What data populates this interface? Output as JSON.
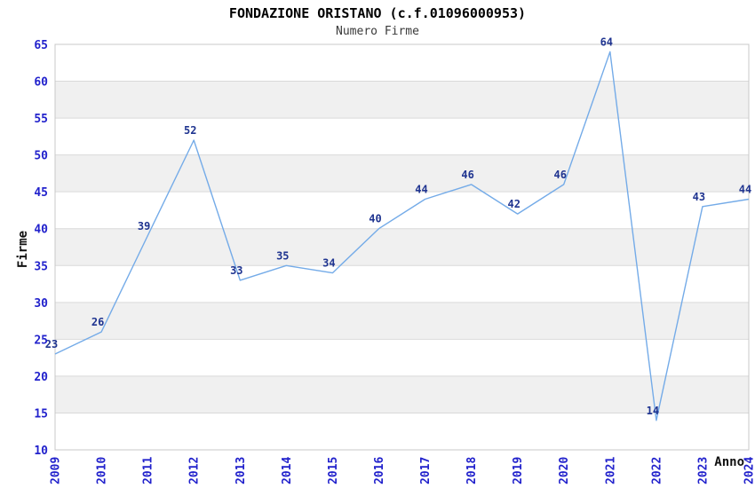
{
  "chart": {
    "title": "FONDAZIONE ORISTANO (c.f.01096000953)",
    "subtitle": "Numero Firme",
    "ylabel": "Firme",
    "xlabel": "Anno"
  },
  "chart_data": {
    "type": "line",
    "title": "FONDAZIONE ORISTANO (c.f.01096000953)",
    "subtitle": "Numero Firme",
    "xlabel": "Anno",
    "ylabel": "Firme",
    "categories": [
      "2009",
      "2010",
      "2011",
      "2012",
      "2013",
      "2014",
      "2015",
      "2016",
      "2017",
      "2018",
      "2019",
      "2020",
      "2021",
      "2022",
      "2023",
      "2024"
    ],
    "values": [
      23,
      26,
      39,
      52,
      33,
      35,
      34,
      40,
      44,
      46,
      42,
      46,
      64,
      14,
      43,
      44
    ],
    "ylim": [
      10,
      65
    ],
    "ytick_step": 5,
    "grid": "horizontal-bands-alternating",
    "legend": "none",
    "colors": {
      "line": "#74abe8",
      "point_label": "#1f3490",
      "tick_label": "#2222cc",
      "band_even": "#ffffff",
      "band_odd": "#f0f0f0",
      "grid_line": "#d9d9d9",
      "border": "#c8c8c8",
      "title": "#000000",
      "subtitle": "#3a3a3a",
      "axis_title": "#111111"
    }
  }
}
